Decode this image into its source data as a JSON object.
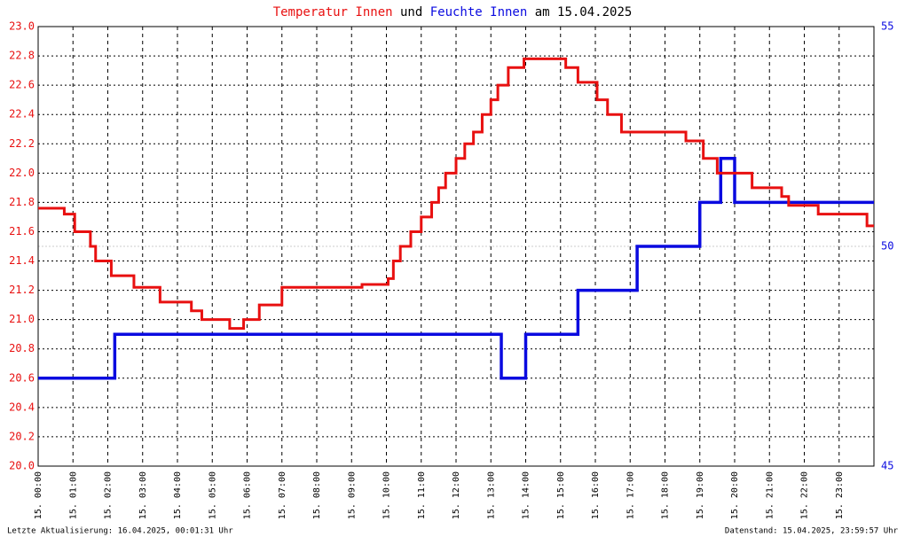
{
  "chart_data": {
    "type": "line",
    "step": true,
    "title": [
      "Temperatur Innen",
      "und",
      "Feuchte Innen",
      "am 15.04.2025"
    ],
    "footer_left": "Letzte Aktualisierung: 16.04.2025, 00:01:31 Uhr",
    "footer_right": "Datenstand: 15.04.2025, 23:59:57 Uhr",
    "xlim": [
      0,
      24
    ],
    "xticks": [
      {
        "value": 0,
        "label": "15. 00:00"
      },
      {
        "value": 1,
        "label": "15. 01:00"
      },
      {
        "value": 2,
        "label": "15. 02:00"
      },
      {
        "value": 3,
        "label": "15. 03:00"
      },
      {
        "value": 4,
        "label": "15. 04:00"
      },
      {
        "value": 5,
        "label": "15. 05:00"
      },
      {
        "value": 6,
        "label": "15. 06:00"
      },
      {
        "value": 7,
        "label": "15. 07:00"
      },
      {
        "value": 8,
        "label": "15. 08:00"
      },
      {
        "value": 9,
        "label": "15. 09:00"
      },
      {
        "value": 10,
        "label": "15. 10:00"
      },
      {
        "value": 11,
        "label": "15. 11:00"
      },
      {
        "value": 12,
        "label": "15. 12:00"
      },
      {
        "value": 13,
        "label": "15. 13:00"
      },
      {
        "value": 14,
        "label": "15. 14:00"
      },
      {
        "value": 15,
        "label": "15. 15:00"
      },
      {
        "value": 16,
        "label": "15. 16:00"
      },
      {
        "value": 17,
        "label": "15. 17:00"
      },
      {
        "value": 18,
        "label": "15. 18:00"
      },
      {
        "value": 19,
        "label": "15. 19:00"
      },
      {
        "value": 20,
        "label": "15. 20:00"
      },
      {
        "value": 21,
        "label": "15. 21:00"
      },
      {
        "value": 22,
        "label": "15. 22:00"
      },
      {
        "value": 23,
        "label": "15. 23:00"
      }
    ],
    "ylim": [
      20,
      23
    ],
    "yticks": [
      {
        "value": 20,
        "label": "20.0"
      },
      20.2,
      20.4,
      20.6,
      20.8,
      {
        "value": 21,
        "label": "21.0"
      },
      21.2,
      21.4,
      21.6,
      21.8,
      {
        "value": 22,
        "label": "22.0"
      },
      22.2,
      22.4,
      22.6,
      22.8,
      {
        "value": 23,
        "label": "23.0"
      }
    ],
    "y2lim": [
      45,
      55
    ],
    "y2ticks": [
      45,
      50,
      55
    ],
    "grid": true,
    "series": [
      {
        "color": "#e81010",
        "axis": "y",
        "x": [
          0,
          0.75,
          1.05,
          1.5,
          1.65,
          2.1,
          2.75,
          3.5,
          4.4,
          4.7,
          5.5,
          5.9,
          6.35,
          7.0,
          9.3,
          10.05,
          10.2,
          10.4,
          10.7,
          11.0,
          11.3,
          11.5,
          11.7,
          12.0,
          12.25,
          12.5,
          12.75,
          13.0,
          13.2,
          13.5,
          13.95,
          15.15,
          15.5,
          16.05,
          16.35,
          16.75,
          18.6,
          19.1,
          19.5,
          20.5,
          21.35,
          21.55,
          22.4,
          23.8,
          24
        ],
        "values": [
          21.76,
          21.72,
          21.6,
          21.5,
          21.4,
          21.3,
          21.22,
          21.12,
          21.06,
          21.0,
          20.94,
          21.0,
          21.1,
          21.22,
          21.24,
          21.28,
          21.4,
          21.5,
          21.6,
          21.7,
          21.8,
          21.9,
          22.0,
          22.1,
          22.2,
          22.28,
          22.4,
          22.5,
          22.6,
          22.72,
          22.78,
          22.72,
          22.62,
          22.5,
          22.4,
          22.28,
          22.22,
          22.1,
          22.0,
          21.9,
          21.84,
          21.78,
          21.72,
          21.64,
          21.64
        ]
      },
      {
        "color": "#0a0ae0",
        "axis": "y2",
        "x": [
          0,
          2.2,
          13.3,
          14.0,
          15.5,
          17.2,
          19.0,
          19.6,
          20.0,
          24
        ],
        "values": [
          47,
          48,
          47,
          48,
          49,
          50,
          51,
          52,
          51,
          51
        ]
      }
    ]
  }
}
